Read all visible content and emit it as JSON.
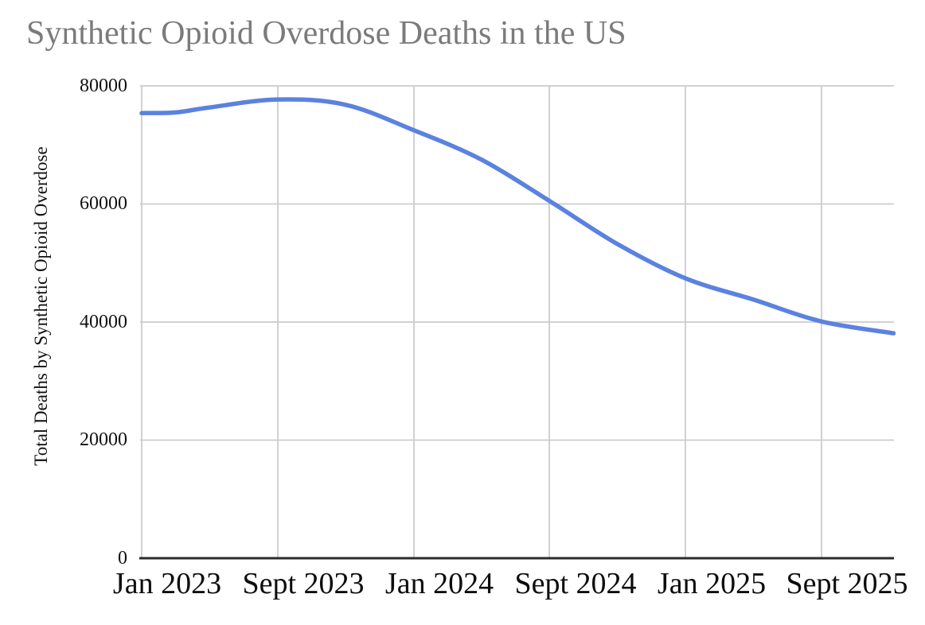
{
  "chart_data": {
    "type": "line",
    "title": "Synthetic Opioid Overdose Deaths in the US",
    "xlabel": "",
    "ylabel": "Total Deaths by Synthetic Opioid Overdose",
    "ylim": [
      0,
      80000
    ],
    "ytick_labels": [
      "0",
      "20000",
      "40000",
      "60000",
      "80000"
    ],
    "yticks": [
      0,
      20000,
      40000,
      60000,
      80000
    ],
    "xtick_labels": [
      "Jan 2023",
      "Sept 2023",
      "Jan 2024",
      "Sept 2024",
      "Jan 2025",
      "Sept 2025"
    ],
    "grid": true,
    "legend": "none",
    "line_color": "#5b82e0",
    "series": [
      {
        "x_units": "tick-index units (0 = Jan 2023 tick, 5 = Sept 2025 tick; curve extends to 5.53)",
        "points": [
          {
            "x": 0.0,
            "value": 75400
          },
          {
            "x": 0.25,
            "value": 75500
          },
          {
            "x": 0.5,
            "value": 76350
          },
          {
            "x": 1.0,
            "value": 77700
          },
          {
            "x": 1.5,
            "value": 76800
          },
          {
            "x": 2.0,
            "value": 72500
          },
          {
            "x": 2.5,
            "value": 67500
          },
          {
            "x": 3.0,
            "value": 60500
          },
          {
            "x": 3.5,
            "value": 53200
          },
          {
            "x": 4.0,
            "value": 47400
          },
          {
            "x": 4.5,
            "value": 43800
          },
          {
            "x": 5.0,
            "value": 40100
          },
          {
            "x": 5.53,
            "value": 38100
          }
        ]
      }
    ]
  }
}
